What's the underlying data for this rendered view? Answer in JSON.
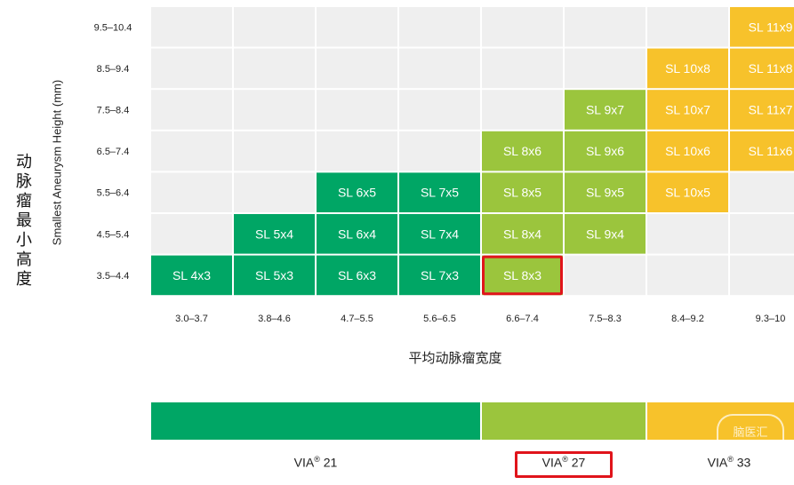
{
  "chart_data": {
    "type": "heatmap",
    "xlabel": "平均动脉瘤宽度",
    "ylabel": "Smallest Aneurysm Height (mm)",
    "ylabel_cn": "动脉瘤最小高度",
    "x_categories": [
      "3.0–3.7",
      "3.8–4.6",
      "4.7–5.5",
      "5.6–6.5",
      "6.6–7.4",
      "7.5–8.3",
      "8.4–9.2",
      "9.3–10"
    ],
    "y_categories": [
      "9.5–10.4",
      "8.5–9.4",
      "7.5–8.4",
      "6.5–7.4",
      "5.5–6.4",
      "4.5–5.4",
      "3.5–4.4"
    ],
    "cells": [
      {
        "x": "9.3–10",
        "y": "9.5–10.4",
        "label": "SL 11x9",
        "device": "VIA 33"
      },
      {
        "x": "8.4–9.2",
        "y": "8.5–9.4",
        "label": "SL 10x8",
        "device": "VIA 33"
      },
      {
        "x": "9.3–10",
        "y": "8.5–9.4",
        "label": "SL 11x8",
        "device": "VIA 33"
      },
      {
        "x": "7.5–8.3",
        "y": "7.5–8.4",
        "label": "SL 9x7",
        "device": "VIA 27"
      },
      {
        "x": "8.4–9.2",
        "y": "7.5–8.4",
        "label": "SL 10x7",
        "device": "VIA 33"
      },
      {
        "x": "9.3–10",
        "y": "7.5–8.4",
        "label": "SL 11x7",
        "device": "VIA 33"
      },
      {
        "x": "6.6–7.4",
        "y": "6.5–7.4",
        "label": "SL 8x6",
        "device": "VIA 27"
      },
      {
        "x": "7.5–8.3",
        "y": "6.5–7.4",
        "label": "SL 9x6",
        "device": "VIA 27"
      },
      {
        "x": "8.4–9.2",
        "y": "6.5–7.4",
        "label": "SL 10x6",
        "device": "VIA 33"
      },
      {
        "x": "9.3–10",
        "y": "6.5–7.4",
        "label": "SL 11x6",
        "device": "VIA 33"
      },
      {
        "x": "4.7–5.5",
        "y": "5.5–6.4",
        "label": "SL 6x5",
        "device": "VIA 21"
      },
      {
        "x": "5.6–6.5",
        "y": "5.5–6.4",
        "label": "SL 7x5",
        "device": "VIA 21"
      },
      {
        "x": "6.6–7.4",
        "y": "5.5–6.4",
        "label": "SL 8x5",
        "device": "VIA 27"
      },
      {
        "x": "7.5–8.3",
        "y": "5.5–6.4",
        "label": "SL 9x5",
        "device": "VIA 27"
      },
      {
        "x": "8.4–9.2",
        "y": "5.5–6.4",
        "label": "SL 10x5",
        "device": "VIA 33"
      },
      {
        "x": "3.8–4.6",
        "y": "4.5–5.4",
        "label": "SL 5x4",
        "device": "VIA 21"
      },
      {
        "x": "4.7–5.5",
        "y": "4.5–5.4",
        "label": "SL 6x4",
        "device": "VIA 21"
      },
      {
        "x": "5.6–6.5",
        "y": "4.5–5.4",
        "label": "SL 7x4",
        "device": "VIA 21"
      },
      {
        "x": "6.6–7.4",
        "y": "4.5–5.4",
        "label": "SL 8x4",
        "device": "VIA 27"
      },
      {
        "x": "7.5–8.3",
        "y": "4.5–5.4",
        "label": "SL 9x4",
        "device": "VIA 27"
      },
      {
        "x": "3.0–3.7",
        "y": "3.5–4.4",
        "label": "SL 4x3",
        "device": "VIA 21"
      },
      {
        "x": "3.8–4.6",
        "y": "3.5–4.4",
        "label": "SL 5x3",
        "device": "VIA 21"
      },
      {
        "x": "4.7–5.5",
        "y": "3.5–4.4",
        "label": "SL 6x3",
        "device": "VIA 21"
      },
      {
        "x": "5.6–6.5",
        "y": "3.5–4.4",
        "label": "SL 7x3",
        "device": "VIA 21"
      },
      {
        "x": "6.6–7.4",
        "y": "3.5–4.4",
        "label": "SL 8x3",
        "device": "VIA 27",
        "highlighted": true
      }
    ],
    "devices": [
      {
        "name": "VIA",
        "sup": "®",
        "size": "21",
        "color": "#00a665",
        "x_from": "3.0–3.7",
        "x_to": "5.6–6.5"
      },
      {
        "name": "VIA",
        "sup": "®",
        "size": "27",
        "color": "#9bc53d",
        "x_from": "6.6–7.4",
        "x_to": "7.5–8.3",
        "highlighted": true
      },
      {
        "name": "VIA",
        "sup": "®",
        "size": "33",
        "color": "#f7c22b",
        "x_from": "8.4–9.2",
        "x_to": "9.3–10"
      }
    ],
    "empty_color": "#efefef",
    "highlight_color": "#e0141b",
    "grid": true
  },
  "watermark": "脑医汇"
}
